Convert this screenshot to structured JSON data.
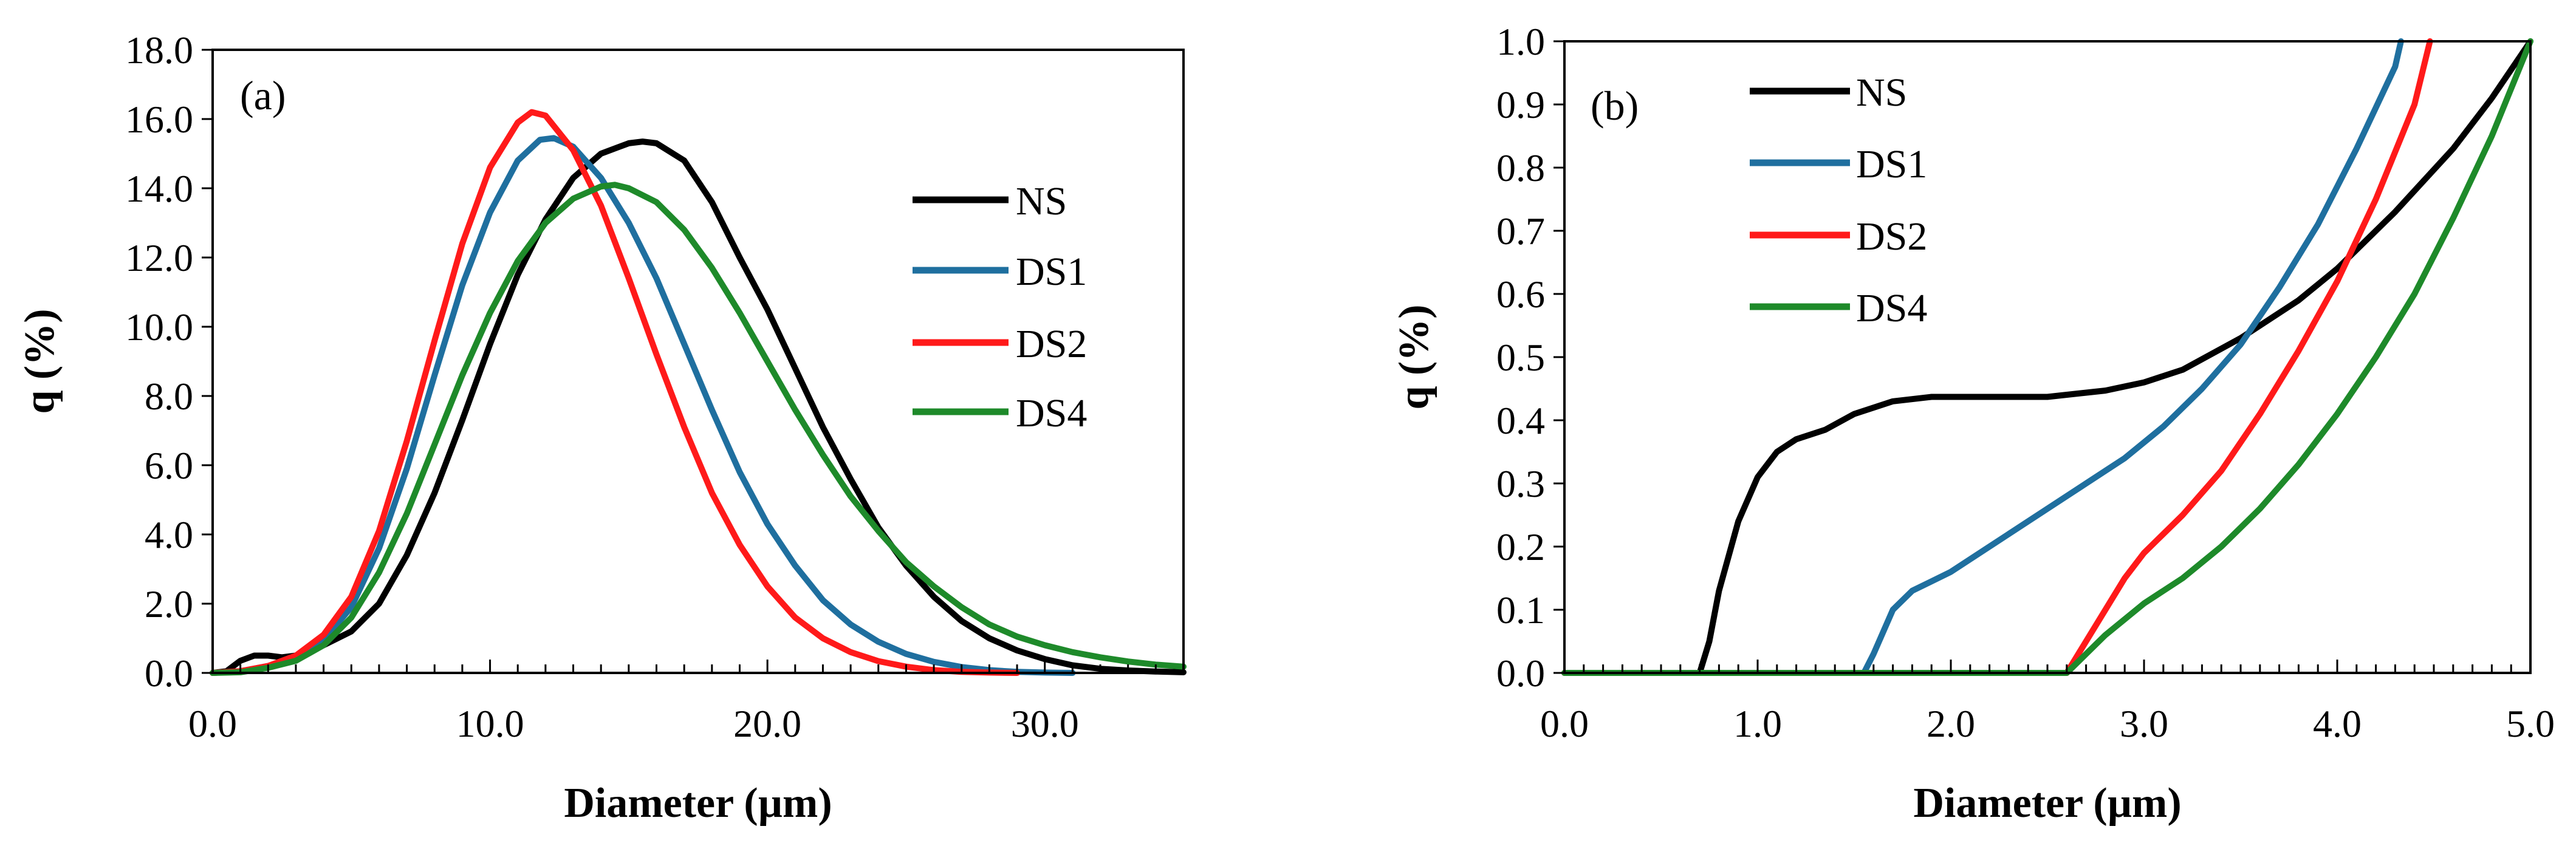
{
  "chart_data": [
    {
      "type": "line",
      "panel_label": "(a)",
      "xlabel": "Diameter (µm)",
      "ylabel": "q (%)",
      "xlim": [
        0,
        35
      ],
      "ylim": [
        0,
        18
      ],
      "xticks": [
        0,
        10,
        20,
        30
      ],
      "xtick_labels": [
        "0.0",
        "10.0",
        "20.0",
        "30.0"
      ],
      "x_minor_step": 1,
      "yticks": [
        0,
        2,
        4,
        6,
        8,
        10,
        12,
        14,
        16,
        18
      ],
      "ytick_labels": [
        "0.0",
        "2.0",
        "4.0",
        "6.0",
        "8.0",
        "10.0",
        "12.0",
        "14.0",
        "16.0",
        "18.0"
      ],
      "grid": false,
      "legend_position": "right",
      "series": [
        {
          "name": "NS",
          "color": "#000000",
          "points": [
            [
              0,
              0
            ],
            [
              0.5,
              0.05
            ],
            [
              1,
              0.35
            ],
            [
              1.5,
              0.5
            ],
            [
              2,
              0.5
            ],
            [
              2.5,
              0.45
            ],
            [
              3,
              0.5
            ],
            [
              4,
              0.8
            ],
            [
              5,
              1.2
            ],
            [
              6,
              2.0
            ],
            [
              7,
              3.4
            ],
            [
              8,
              5.2
            ],
            [
              9,
              7.3
            ],
            [
              10,
              9.5
            ],
            [
              11,
              11.5
            ],
            [
              12,
              13.1
            ],
            [
              13,
              14.3
            ],
            [
              14,
              15.0
            ],
            [
              15,
              15.3
            ],
            [
              15.5,
              15.35
            ],
            [
              16,
              15.3
            ],
            [
              17,
              14.8
            ],
            [
              18,
              13.6
            ],
            [
              19,
              12.0
            ],
            [
              20,
              10.5
            ],
            [
              21,
              8.8
            ],
            [
              22,
              7.1
            ],
            [
              23,
              5.6
            ],
            [
              24,
              4.2
            ],
            [
              25,
              3.1
            ],
            [
              26,
              2.2
            ],
            [
              27,
              1.5
            ],
            [
              28,
              1.0
            ],
            [
              29,
              0.65
            ],
            [
              30,
              0.4
            ],
            [
              31,
              0.22
            ],
            [
              32,
              0.12
            ],
            [
              33,
              0.07
            ],
            [
              34,
              0.04
            ],
            [
              35,
              0.02
            ]
          ]
        },
        {
          "name": "DS1",
          "color": "#1f6f9f",
          "points": [
            [
              0,
              0
            ],
            [
              1,
              0.05
            ],
            [
              2,
              0.2
            ],
            [
              3,
              0.45
            ],
            [
              4,
              0.95
            ],
            [
              5,
              1.9
            ],
            [
              6,
              3.6
            ],
            [
              7,
              5.9
            ],
            [
              8,
              8.6
            ],
            [
              9,
              11.2
            ],
            [
              10,
              13.3
            ],
            [
              11,
              14.8
            ],
            [
              11.8,
              15.4
            ],
            [
              12.3,
              15.45
            ],
            [
              13,
              15.2
            ],
            [
              14,
              14.3
            ],
            [
              15,
              13.0
            ],
            [
              16,
              11.4
            ],
            [
              17,
              9.5
            ],
            [
              18,
              7.6
            ],
            [
              19,
              5.8
            ],
            [
              20,
              4.3
            ],
            [
              21,
              3.1
            ],
            [
              22,
              2.1
            ],
            [
              23,
              1.4
            ],
            [
              24,
              0.9
            ],
            [
              25,
              0.55
            ],
            [
              26,
              0.32
            ],
            [
              27,
              0.17
            ],
            [
              28,
              0.08
            ],
            [
              29,
              0.03
            ],
            [
              30,
              0.01
            ],
            [
              31,
              0
            ]
          ]
        },
        {
          "name": "DS2",
          "color": "#ff1a1a",
          "points": [
            [
              0,
              0
            ],
            [
              1,
              0.05
            ],
            [
              2,
              0.2
            ],
            [
              3,
              0.5
            ],
            [
              4,
              1.1
            ],
            [
              5,
              2.2
            ],
            [
              6,
              4.1
            ],
            [
              7,
              6.7
            ],
            [
              8,
              9.6
            ],
            [
              9,
              12.4
            ],
            [
              10,
              14.6
            ],
            [
              11,
              15.9
            ],
            [
              11.5,
              16.2
            ],
            [
              12,
              16.1
            ],
            [
              13,
              15.1
            ],
            [
              14,
              13.5
            ],
            [
              15,
              11.4
            ],
            [
              16,
              9.2
            ],
            [
              17,
              7.1
            ],
            [
              18,
              5.2
            ],
            [
              19,
              3.7
            ],
            [
              20,
              2.5
            ],
            [
              21,
              1.6
            ],
            [
              22,
              1.0
            ],
            [
              23,
              0.6
            ],
            [
              24,
              0.34
            ],
            [
              25,
              0.18
            ],
            [
              26,
              0.08
            ],
            [
              27,
              0.03
            ],
            [
              28,
              0.01
            ],
            [
              29,
              0
            ]
          ]
        },
        {
          "name": "DS4",
          "color": "#1e8a2a",
          "points": [
            [
              0,
              0
            ],
            [
              1,
              0.02
            ],
            [
              2,
              0.15
            ],
            [
              3,
              0.35
            ],
            [
              4,
              0.8
            ],
            [
              5,
              1.6
            ],
            [
              6,
              2.9
            ],
            [
              7,
              4.6
            ],
            [
              8,
              6.6
            ],
            [
              9,
              8.6
            ],
            [
              10,
              10.4
            ],
            [
              11,
              11.9
            ],
            [
              12,
              13.0
            ],
            [
              13,
              13.7
            ],
            [
              14,
              14.05
            ],
            [
              14.5,
              14.1
            ],
            [
              15,
              14.0
            ],
            [
              16,
              13.6
            ],
            [
              17,
              12.8
            ],
            [
              18,
              11.7
            ],
            [
              19,
              10.4
            ],
            [
              20,
              9.0
            ],
            [
              21,
              7.6
            ],
            [
              22,
              6.3
            ],
            [
              23,
              5.1
            ],
            [
              24,
              4.1
            ],
            [
              25,
              3.2
            ],
            [
              26,
              2.5
            ],
            [
              27,
              1.9
            ],
            [
              28,
              1.4
            ],
            [
              29,
              1.05
            ],
            [
              30,
              0.8
            ],
            [
              31,
              0.6
            ],
            [
              32,
              0.45
            ],
            [
              33,
              0.33
            ],
            [
              34,
              0.24
            ],
            [
              35,
              0.18
            ]
          ]
        }
      ]
    },
    {
      "type": "line",
      "panel_label": "(b)",
      "xlabel": "Diameter (µm)",
      "ylabel": "q (%)",
      "xlim": [
        0,
        5
      ],
      "ylim": [
        0,
        1
      ],
      "xticks": [
        0,
        1,
        2,
        3,
        4,
        5
      ],
      "xtick_labels": [
        "0.0",
        "1.0",
        "2.0",
        "3.0",
        "4.0",
        "5.0"
      ],
      "x_minor_step": 0.1,
      "yticks": [
        0,
        0.1,
        0.2,
        0.3,
        0.4,
        0.5,
        0.6,
        0.7,
        0.8,
        0.9,
        1.0
      ],
      "ytick_labels": [
        "0.0",
        "0.1",
        "0.2",
        "0.3",
        "0.4",
        "0.5",
        "0.6",
        "0.7",
        "0.8",
        "0.9",
        "1.0"
      ],
      "grid": false,
      "legend_position": "top-left",
      "series": [
        {
          "name": "NS",
          "color": "#000000",
          "points": [
            [
              0,
              0
            ],
            [
              0.7,
              0
            ],
            [
              0.75,
              0.05
            ],
            [
              0.8,
              0.13
            ],
            [
              0.9,
              0.24
            ],
            [
              1.0,
              0.31
            ],
            [
              1.1,
              0.35
            ],
            [
              1.2,
              0.37
            ],
            [
              1.35,
              0.385
            ],
            [
              1.5,
              0.41
            ],
            [
              1.7,
              0.43
            ],
            [
              1.9,
              0.437
            ],
            [
              2.2,
              0.437
            ],
            [
              2.5,
              0.437
            ],
            [
              2.8,
              0.447
            ],
            [
              3.0,
              0.46
            ],
            [
              3.2,
              0.48
            ],
            [
              3.5,
              0.53
            ],
            [
              3.8,
              0.59
            ],
            [
              4.0,
              0.64
            ],
            [
              4.3,
              0.73
            ],
            [
              4.6,
              0.83
            ],
            [
              4.8,
              0.91
            ],
            [
              5.0,
              1.0
            ]
          ]
        },
        {
          "name": "DS1",
          "color": "#1f6f9f",
          "points": [
            [
              0,
              0
            ],
            [
              1.55,
              0
            ],
            [
              1.6,
              0.03
            ],
            [
              1.7,
              0.1
            ],
            [
              1.8,
              0.13
            ],
            [
              2.0,
              0.16
            ],
            [
              2.3,
              0.22
            ],
            [
              2.6,
              0.28
            ],
            [
              2.9,
              0.34
            ],
            [
              3.1,
              0.39
            ],
            [
              3.3,
              0.45
            ],
            [
              3.5,
              0.52
            ],
            [
              3.7,
              0.61
            ],
            [
              3.9,
              0.71
            ],
            [
              4.1,
              0.83
            ],
            [
              4.3,
              0.96
            ],
            [
              4.33,
              1.0
            ]
          ]
        },
        {
          "name": "DS2",
          "color": "#ff1a1a",
          "points": [
            [
              0,
              0
            ],
            [
              2.6,
              0
            ],
            [
              2.7,
              0.05
            ],
            [
              2.8,
              0.1
            ],
            [
              2.9,
              0.15
            ],
            [
              3.0,
              0.19
            ],
            [
              3.2,
              0.25
            ],
            [
              3.4,
              0.32
            ],
            [
              3.6,
              0.41
            ],
            [
              3.8,
              0.51
            ],
            [
              4.0,
              0.62
            ],
            [
              4.2,
              0.75
            ],
            [
              4.4,
              0.9
            ],
            [
              4.48,
              1.0
            ]
          ]
        },
        {
          "name": "DS4",
          "color": "#1e8a2a",
          "points": [
            [
              0,
              0
            ],
            [
              2.6,
              0
            ],
            [
              2.7,
              0.03
            ],
            [
              2.8,
              0.06
            ],
            [
              2.9,
              0.085
            ],
            [
              3.0,
              0.11
            ],
            [
              3.2,
              0.15
            ],
            [
              3.4,
              0.2
            ],
            [
              3.6,
              0.26
            ],
            [
              3.8,
              0.33
            ],
            [
              4.0,
              0.41
            ],
            [
              4.2,
              0.5
            ],
            [
              4.4,
              0.6
            ],
            [
              4.6,
              0.72
            ],
            [
              4.8,
              0.85
            ],
            [
              5.0,
              1.0
            ]
          ]
        }
      ]
    }
  ]
}
